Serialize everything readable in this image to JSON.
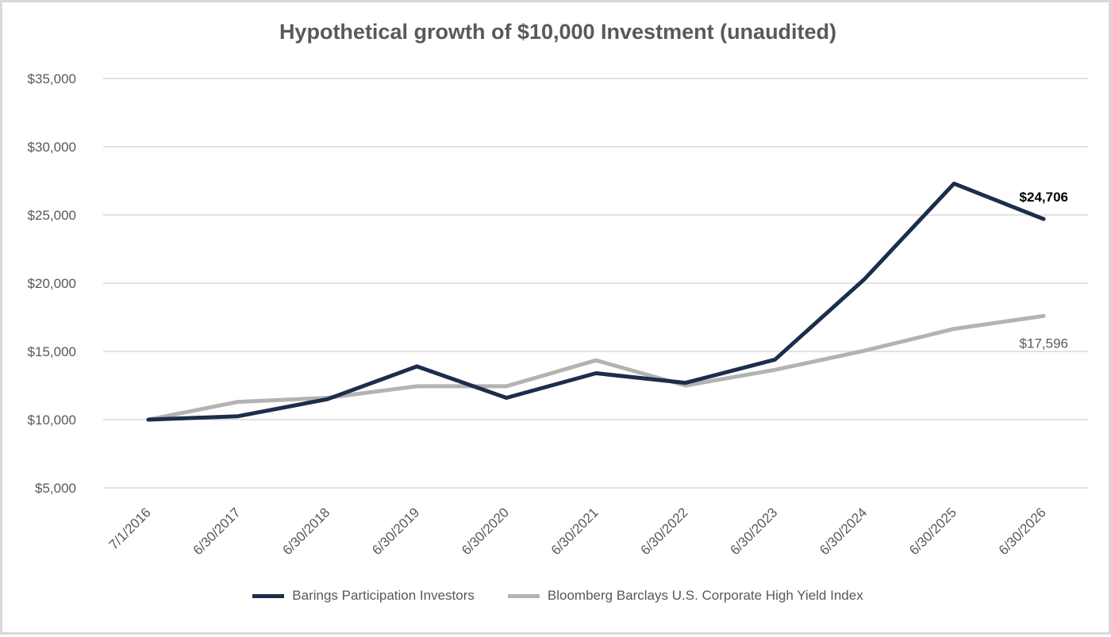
{
  "chart_data": {
    "type": "line",
    "title": "Hypothetical growth of $10,000 Investment (unaudited)",
    "categories": [
      "7/1/2016",
      "6/30/2017",
      "6/30/2018",
      "6/30/2019",
      "6/30/2020",
      "6/30/2021",
      "6/30/2022",
      "6/30/2023",
      "6/30/2024",
      "6/30/2025",
      "6/30/2026"
    ],
    "series": [
      {
        "name": "Barings Participation Investors",
        "color": "#1b2e4b",
        "values": [
          10000,
          10250,
          11500,
          13900,
          11600,
          13400,
          12700,
          14400,
          20300,
          27300,
          24706
        ],
        "end_label": "$24,706"
      },
      {
        "name": "Bloomberg Barclays U.S. Corporate High Yield Index",
        "color": "#b3b3b3",
        "values": [
          10000,
          11300,
          11600,
          12450,
          12450,
          14350,
          12500,
          13650,
          15050,
          16650,
          17596
        ],
        "end_label": "$17,596"
      }
    ],
    "ylim": [
      5000,
      35000
    ],
    "yticks": [
      5000,
      10000,
      15000,
      20000,
      25000,
      30000,
      35000
    ],
    "ytick_labels": [
      "$5,000",
      "$10,000",
      "$15,000",
      "$20,000",
      "$25,000",
      "$30,000",
      "$35,000"
    ],
    "grid": true,
    "legend_position": "bottom"
  }
}
